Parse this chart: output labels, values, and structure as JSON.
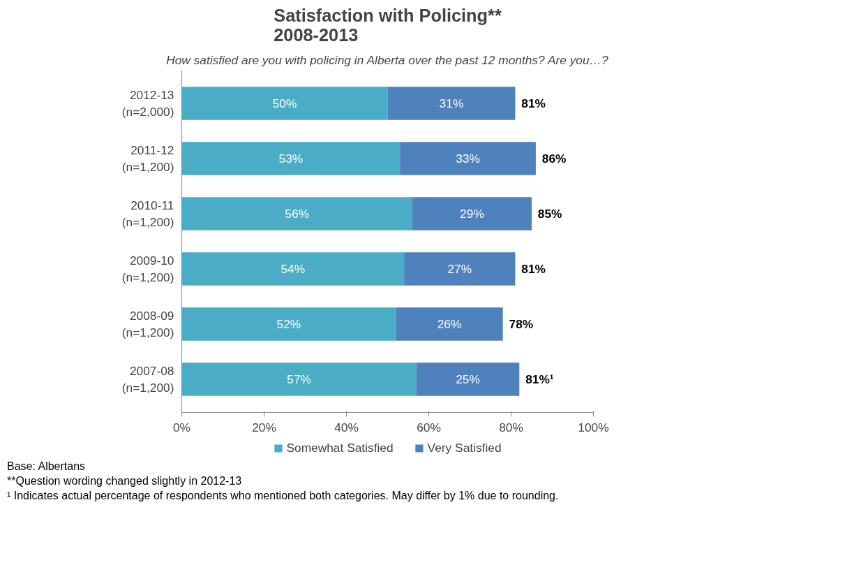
{
  "chart_data": {
    "type": "bar",
    "orientation": "horizontal",
    "stacked": true,
    "title": "Satisfaction with Policing**\n2008-2013",
    "subtitle": "How satisfied are you with policing in Alberta over the past 12 months? Are you…?",
    "categories": [
      "2012-13\n(n=2,000)",
      "2011-12\n(n=1,200)",
      "2010-11\n(n=1,200)",
      "2009-10\n(n=1,200)",
      "2008-09\n(n=1,200)",
      "2007-08\n(n=1,200)"
    ],
    "series": [
      {
        "name": "Somewhat Satisfied",
        "color": "#4bacc6",
        "values": [
          50,
          53,
          56,
          54,
          52,
          57
        ],
        "value_labels": [
          "50%",
          "53%",
          "56%",
          "54%",
          "52%",
          "57%"
        ]
      },
      {
        "name": "Very Satisfied",
        "color": "#4f81bd",
        "values": [
          31,
          33,
          29,
          27,
          26,
          25
        ],
        "value_labels": [
          "31%",
          "33%",
          "29%",
          "27%",
          "26%",
          "25%"
        ]
      }
    ],
    "totals": [
      "81%",
      "86%",
      "85%",
      "81%",
      "78%",
      "81%¹"
    ],
    "xlim": [
      0,
      100
    ],
    "xticks": [
      {
        "value": 0,
        "label": "0%"
      },
      {
        "value": 20,
        "label": "20%"
      },
      {
        "value": 40,
        "label": "40%"
      },
      {
        "value": 60,
        "label": "60%"
      },
      {
        "value": 80,
        "label": "80%"
      },
      {
        "value": 100,
        "label": "100%"
      }
    ],
    "grid": false,
    "legend": "bottom",
    "annotations": [
      "Base: Albertans",
      "**Question wording changed slightly in 2012-13",
      "¹ Indicates actual percentage of respondents who mentioned both categories. May differ by 1% due to rounding."
    ]
  }
}
